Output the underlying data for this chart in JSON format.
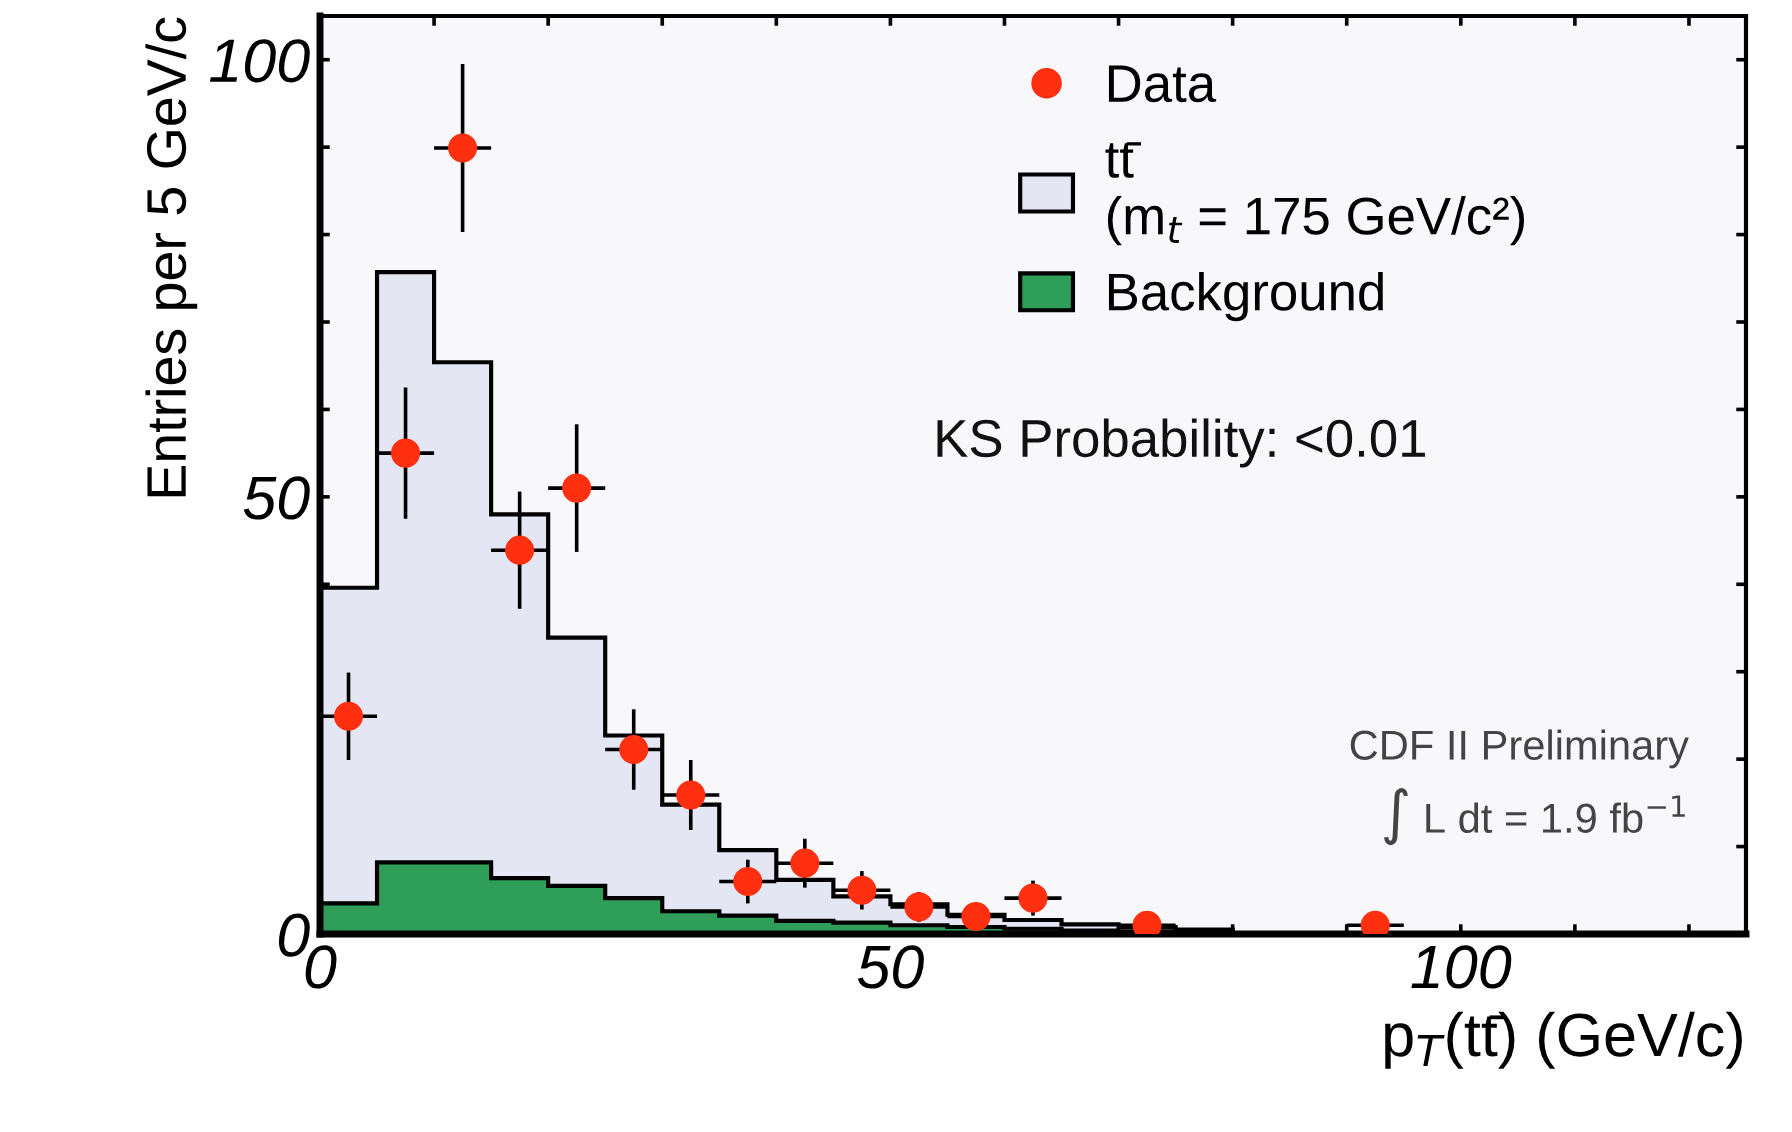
{
  "chart_data": {
    "type": "histogram",
    "xlabel": "p$_{T}$(tt̄) (GeV/c)",
    "ylabel": "Entries per 5 GeV/c",
    "bins": [
      0,
      5,
      10,
      15,
      20,
      25,
      30,
      35,
      40,
      45,
      50,
      55,
      60,
      65,
      70,
      75,
      80
    ],
    "series": [
      {
        "name": "Data",
        "type": "scatter",
        "color": "#ff3010",
        "marker": "circle",
        "x": [
          2.5,
          7.5,
          12.5,
          17.5,
          22.5,
          27.5,
          32.5,
          37.5,
          42.5,
          47.5,
          52.5,
          57.5,
          62.5,
          72.5,
          92.5
        ],
        "values": [
          24.9,
          55,
          89.9,
          43.9,
          51,
          21.1,
          15.9,
          6,
          8.1,
          5,
          3.1,
          2,
          4.1,
          1,
          1
        ],
        "errors": [
          5,
          7.5,
          9.6,
          6.7,
          7.3,
          4.6,
          4,
          2.5,
          2.8,
          2.2,
          1.7,
          1.4,
          2,
          null,
          null
        ],
        "xerrors": [
          2.5,
          2.5,
          2.5,
          2.5,
          2.5,
          2.5,
          2.5,
          2.5,
          2.5,
          2.5,
          2.5,
          2.5,
          2.5,
          2.5,
          2.5
        ]
      },
      {
        "name": "tt̄\n(m$_{t}$ = 175 GeV/c²)",
        "color": "#e4e6f4",
        "values": [
          39.6,
          75.7,
          65.4,
          48,
          33.9,
          22.7,
          14.8,
          9.6,
          6.2,
          4.3,
          3.4,
          2.2,
          1.6,
          1.1,
          0.8,
          0.5
        ]
      },
      {
        "name": "Background",
        "color": "#2e9e58",
        "values": [
          3.5,
          8.2,
          8.2,
          6.4,
          5.5,
          4.1,
          2.6,
          2.1,
          1.5,
          1.3,
          1.0,
          0.8,
          0.6,
          0.4,
          0.3,
          0.2
        ]
      }
    ],
    "xlim": [
      0,
      125
    ],
    "ylim": [
      0,
      105
    ],
    "xticks": [
      0,
      {
        "value": 10,
        "label": null
      },
      {
        "value": 20,
        "label": null
      },
      {
        "value": 30,
        "label": null
      },
      {
        "value": 40,
        "label": null
      },
      50,
      {
        "value": 60,
        "label": null
      },
      {
        "value": 70,
        "label": null
      },
      {
        "value": 80,
        "label": null
      },
      {
        "value": 90,
        "label": null
      },
      100,
      {
        "value": 110,
        "label": null
      },
      {
        "value": 120,
        "label": null
      }
    ],
    "yticks": [
      0,
      {
        "value": 10,
        "label": null
      },
      {
        "value": 20,
        "label": null
      },
      {
        "value": 30,
        "label": null
      },
      {
        "value": 40,
        "label": null
      },
      50,
      {
        "value": 60,
        "label": null
      },
      {
        "value": 70,
        "label": null
      },
      {
        "value": 80,
        "label": null
      },
      {
        "value": 90,
        "label": null
      },
      100
    ],
    "legend": "top right",
    "grid": false,
    "annotations": [
      "KS Probability: <0.01",
      "CDF II Preliminary",
      "∫ L dt = 1.9 fb$^{−1}$"
    ]
  }
}
